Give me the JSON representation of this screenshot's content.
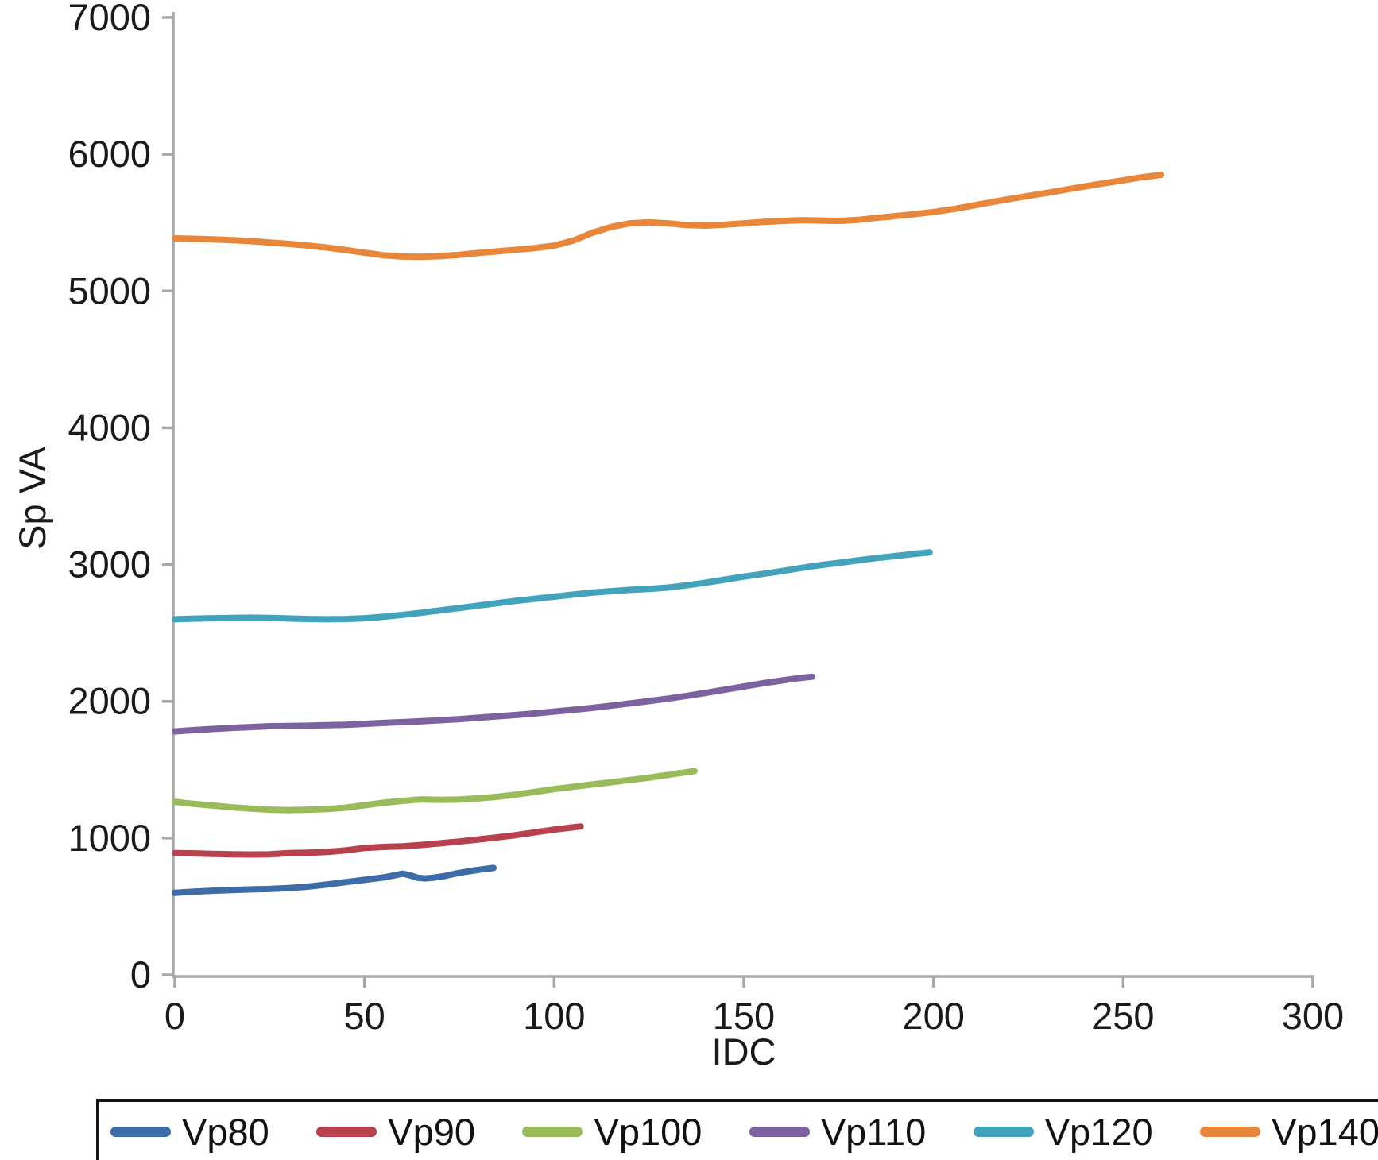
{
  "chart_data": {
    "type": "line",
    "title": "",
    "xlabel": "IDC",
    "ylabel": "Sp VA",
    "xlim": [
      0,
      300
    ],
    "ylim": [
      0,
      7000
    ],
    "x_ticks": [
      0,
      50,
      100,
      150,
      200,
      250,
      300
    ],
    "y_ticks": [
      0,
      1000,
      2000,
      3000,
      4000,
      5000,
      6000,
      7000
    ],
    "grid": false,
    "legend_position": "bottom",
    "axis_color": "#a8a8a8",
    "tick_label_color": "#1a1a1a",
    "series": [
      {
        "name": "Vp80",
        "color": "#3e6ca6",
        "points": [
          [
            0,
            600
          ],
          [
            5,
            608
          ],
          [
            10,
            615
          ],
          [
            15,
            620
          ],
          [
            20,
            625
          ],
          [
            25,
            628
          ],
          [
            30,
            635
          ],
          [
            35,
            645
          ],
          [
            40,
            660
          ],
          [
            45,
            678
          ],
          [
            50,
            695
          ],
          [
            55,
            712
          ],
          [
            58,
            728
          ],
          [
            60,
            740
          ],
          [
            62,
            728
          ],
          [
            64,
            710
          ],
          [
            66,
            705
          ],
          [
            68,
            710
          ],
          [
            71,
            722
          ],
          [
            74,
            740
          ],
          [
            77,
            755
          ],
          [
            80,
            768
          ],
          [
            82,
            775
          ],
          [
            84,
            782
          ]
        ]
      },
      {
        "name": "Vp90",
        "color": "#b8414e",
        "points": [
          [
            0,
            890
          ],
          [
            5,
            888
          ],
          [
            10,
            885
          ],
          [
            15,
            882
          ],
          [
            20,
            880
          ],
          [
            25,
            882
          ],
          [
            30,
            890
          ],
          [
            35,
            893
          ],
          [
            40,
            898
          ],
          [
            45,
            910
          ],
          [
            50,
            928
          ],
          [
            55,
            935
          ],
          [
            60,
            940
          ],
          [
            65,
            950
          ],
          [
            70,
            962
          ],
          [
            75,
            975
          ],
          [
            80,
            990
          ],
          [
            85,
            1005
          ],
          [
            90,
            1022
          ],
          [
            95,
            1042
          ],
          [
            100,
            1062
          ],
          [
            104,
            1075
          ],
          [
            107,
            1085
          ]
        ]
      },
      {
        "name": "Vp100",
        "color": "#9abb59",
        "points": [
          [
            0,
            1265
          ],
          [
            5,
            1250
          ],
          [
            10,
            1238
          ],
          [
            15,
            1225
          ],
          [
            20,
            1215
          ],
          [
            25,
            1208
          ],
          [
            30,
            1205
          ],
          [
            35,
            1208
          ],
          [
            40,
            1212
          ],
          [
            45,
            1222
          ],
          [
            50,
            1240
          ],
          [
            55,
            1258
          ],
          [
            60,
            1272
          ],
          [
            65,
            1283
          ],
          [
            70,
            1280
          ],
          [
            75,
            1282
          ],
          [
            80,
            1290
          ],
          [
            85,
            1302
          ],
          [
            90,
            1318
          ],
          [
            95,
            1338
          ],
          [
            100,
            1358
          ],
          [
            105,
            1375
          ],
          [
            110,
            1392
          ],
          [
            115,
            1408
          ],
          [
            120,
            1425
          ],
          [
            125,
            1442
          ],
          [
            130,
            1462
          ],
          [
            134,
            1478
          ],
          [
            137,
            1490
          ]
        ]
      },
      {
        "name": "Vp110",
        "color": "#7c63a0",
        "points": [
          [
            0,
            1780
          ],
          [
            5,
            1790
          ],
          [
            10,
            1798
          ],
          [
            15,
            1806
          ],
          [
            20,
            1812
          ],
          [
            25,
            1818
          ],
          [
            30,
            1820
          ],
          [
            35,
            1822
          ],
          [
            40,
            1825
          ],
          [
            45,
            1828
          ],
          [
            50,
            1835
          ],
          [
            55,
            1842
          ],
          [
            60,
            1848
          ],
          [
            65,
            1855
          ],
          [
            70,
            1862
          ],
          [
            75,
            1870
          ],
          [
            80,
            1880
          ],
          [
            85,
            1890
          ],
          [
            90,
            1900
          ],
          [
            95,
            1912
          ],
          [
            100,
            1925
          ],
          [
            105,
            1938
          ],
          [
            110,
            1952
          ],
          [
            115,
            1968
          ],
          [
            120,
            1985
          ],
          [
            125,
            2002
          ],
          [
            130,
            2020
          ],
          [
            135,
            2040
          ],
          [
            140,
            2062
          ],
          [
            145,
            2085
          ],
          [
            150,
            2108
          ],
          [
            155,
            2132
          ],
          [
            160,
            2152
          ],
          [
            164,
            2168
          ],
          [
            168,
            2180
          ]
        ]
      },
      {
        "name": "Vp120",
        "color": "#44a3bb",
        "points": [
          [
            0,
            2600
          ],
          [
            5,
            2605
          ],
          [
            10,
            2608
          ],
          [
            15,
            2610
          ],
          [
            20,
            2612
          ],
          [
            25,
            2610
          ],
          [
            30,
            2606
          ],
          [
            35,
            2602
          ],
          [
            40,
            2600
          ],
          [
            45,
            2602
          ],
          [
            50,
            2608
          ],
          [
            55,
            2618
          ],
          [
            60,
            2632
          ],
          [
            65,
            2648
          ],
          [
            70,
            2665
          ],
          [
            75,
            2682
          ],
          [
            80,
            2700
          ],
          [
            85,
            2718
          ],
          [
            90,
            2735
          ],
          [
            95,
            2750
          ],
          [
            100,
            2765
          ],
          [
            105,
            2780
          ],
          [
            110,
            2795
          ],
          [
            115,
            2805
          ],
          [
            120,
            2815
          ],
          [
            125,
            2822
          ],
          [
            130,
            2832
          ],
          [
            135,
            2848
          ],
          [
            140,
            2868
          ],
          [
            145,
            2890
          ],
          [
            150,
            2912
          ],
          [
            155,
            2932
          ],
          [
            160,
            2952
          ],
          [
            165,
            2975
          ],
          [
            170,
            2995
          ],
          [
            175,
            3012
          ],
          [
            180,
            3030
          ],
          [
            185,
            3048
          ],
          [
            190,
            3062
          ],
          [
            195,
            3078
          ],
          [
            199,
            3090
          ]
        ]
      },
      {
        "name": "Vp140",
        "color": "#e8873c",
        "points": [
          [
            0,
            5385
          ],
          [
            5,
            5382
          ],
          [
            10,
            5378
          ],
          [
            15,
            5372
          ],
          [
            20,
            5365
          ],
          [
            25,
            5355
          ],
          [
            30,
            5345
          ],
          [
            35,
            5332
          ],
          [
            40,
            5318
          ],
          [
            45,
            5300
          ],
          [
            50,
            5280
          ],
          [
            55,
            5262
          ],
          [
            60,
            5252
          ],
          [
            65,
            5250
          ],
          [
            70,
            5255
          ],
          [
            75,
            5265
          ],
          [
            80,
            5278
          ],
          [
            85,
            5290
          ],
          [
            90,
            5302
          ],
          [
            95,
            5315
          ],
          [
            100,
            5332
          ],
          [
            105,
            5368
          ],
          [
            110,
            5425
          ],
          [
            115,
            5468
          ],
          [
            120,
            5495
          ],
          [
            125,
            5502
          ],
          [
            130,
            5495
          ],
          [
            135,
            5482
          ],
          [
            140,
            5478
          ],
          [
            145,
            5485
          ],
          [
            150,
            5495
          ],
          [
            155,
            5505
          ],
          [
            160,
            5512
          ],
          [
            165,
            5518
          ],
          [
            170,
            5515
          ],
          [
            175,
            5512
          ],
          [
            180,
            5520
          ],
          [
            185,
            5535
          ],
          [
            190,
            5548
          ],
          [
            195,
            5562
          ],
          [
            200,
            5578
          ],
          [
            205,
            5598
          ],
          [
            210,
            5622
          ],
          [
            215,
            5648
          ],
          [
            220,
            5672
          ],
          [
            225,
            5695
          ],
          [
            230,
            5718
          ],
          [
            235,
            5742
          ],
          [
            240,
            5765
          ],
          [
            245,
            5788
          ],
          [
            250,
            5810
          ],
          [
            255,
            5832
          ],
          [
            260,
            5850
          ]
        ]
      }
    ]
  },
  "legend": {
    "swatch_shape": "line-swatch",
    "items": [
      "Vp80",
      "Vp90",
      "Vp100",
      "Vp110",
      "Vp120",
      "Vp140"
    ]
  }
}
